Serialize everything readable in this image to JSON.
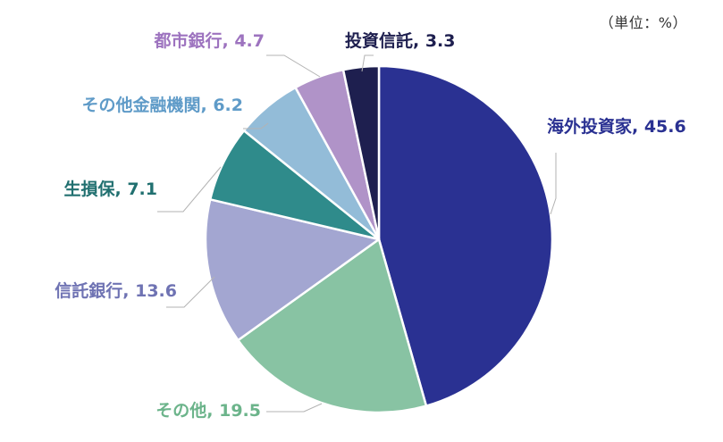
{
  "chart_data": {
    "type": "pie",
    "unit_label": "（単位：%）",
    "slices": [
      {
        "label": "海外投資家",
        "value": 45.6,
        "color": "#2a3192",
        "text_color": "#2a3192"
      },
      {
        "label": "その他",
        "value": 19.5,
        "color": "#88c3a3",
        "text_color": "#6cb48b"
      },
      {
        "label": "信託銀行",
        "value": 13.6,
        "color": "#a3a6d1",
        "text_color": "#6f73b3"
      },
      {
        "label": "生損保",
        "value": 7.1,
        "color": "#2f8b8b",
        "text_color": "#217070"
      },
      {
        "label": "その他金融機関",
        "value": 6.2,
        "color": "#93bcd8",
        "text_color": "#5f9bc8"
      },
      {
        "label": "都市銀行",
        "value": 4.7,
        "color": "#b093c8",
        "text_color": "#9d73bf"
      },
      {
        "label": "投資信託",
        "value": 3.3,
        "color": "#1e1f4f",
        "text_color": "#1e1f4f"
      }
    ]
  }
}
